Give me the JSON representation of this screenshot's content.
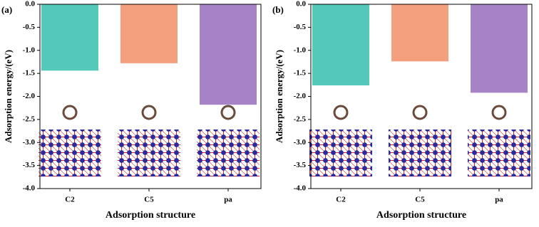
{
  "chart_data": [
    {
      "type": "bar",
      "panel_label": "(a)",
      "y_label": "Adsorption energy/(eV)",
      "x_label": "Adsorption structure",
      "categories": [
        "C2",
        "C5",
        "pa"
      ],
      "values": [
        -1.44,
        -1.28,
        -2.18
      ],
      "colors": [
        "#52c9b9",
        "#f4a07f",
        "#a683c4"
      ],
      "ylim": [
        -4,
        0
      ],
      "yticks": [
        {
          "value": 0,
          "label": "0.0"
        },
        -0.5,
        {
          "value": -1,
          "label": "-1.0"
        },
        -1.5,
        {
          "value": -2,
          "label": "-2.0"
        },
        -2.5,
        {
          "value": -3,
          "label": "-3.0"
        },
        -3.5,
        {
          "value": -4,
          "label": "-4.0"
        }
      ]
    },
    {
      "type": "bar",
      "panel_label": "(b)",
      "y_label": "Adsorption energy/(eV)",
      "x_label": "Adsorption structure",
      "categories": [
        "C2",
        "C5",
        "pa"
      ],
      "values": [
        -1.76,
        -1.24,
        -1.92
      ],
      "colors": [
        "#52c9b9",
        "#f4a07f",
        "#a683c4"
      ],
      "ylim": [
        -4,
        0
      ],
      "yticks": [
        {
          "value": 0,
          "label": "0.0"
        },
        -0.5,
        {
          "value": -1,
          "label": "-1.0"
        },
        -1.5,
        {
          "value": -2,
          "label": "-2.0"
        },
        -2.5,
        {
          "value": -3,
          "label": "-3.0"
        },
        -3.5,
        {
          "value": -4,
          "label": "-4.0"
        }
      ]
    }
  ]
}
